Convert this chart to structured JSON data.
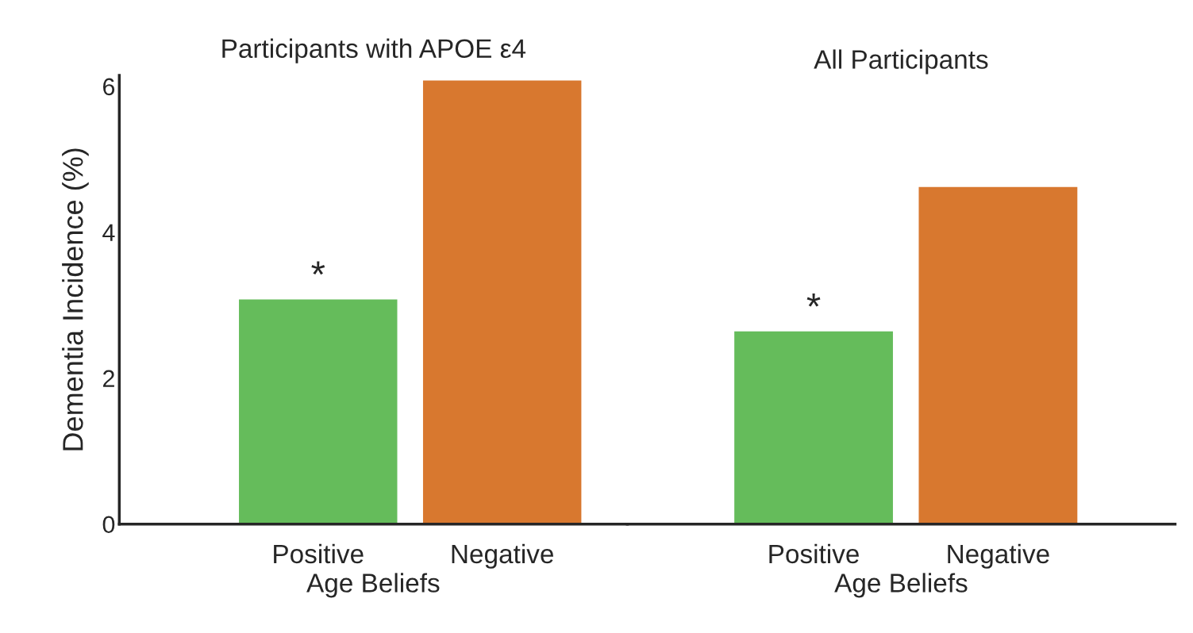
{
  "chart_data": [
    {
      "type": "bar",
      "title": "Participants with APOE ε4",
      "xlabel": "Age Beliefs",
      "ylabel": "Dementia Incidence (%)",
      "categories": [
        "Positive",
        "Negative"
      ],
      "values": [
        3.08,
        6.08
      ],
      "colors": [
        "#65bc5b",
        "#d8782f"
      ],
      "ylim": [
        0,
        6.15
      ],
      "yticks": [
        0,
        2,
        4,
        6
      ],
      "grid": false,
      "annotations": [
        {
          "text": "*",
          "x": "Positive",
          "y": 3.08
        }
      ]
    },
    {
      "type": "bar",
      "title": "All Participants",
      "xlabel": "Age Beliefs",
      "categories": [
        "Positive",
        "Negative"
      ],
      "values": [
        2.64,
        4.62
      ],
      "colors": [
        "#65bc5b",
        "#d8782f"
      ],
      "ylim": [
        0,
        6
      ],
      "yticks": [
        0,
        2,
        4,
        6
      ],
      "tick_labels": "x",
      "grid": false,
      "annotations": [
        {
          "text": "*",
          "x": "Positive",
          "y": 2.64
        }
      ]
    }
  ]
}
